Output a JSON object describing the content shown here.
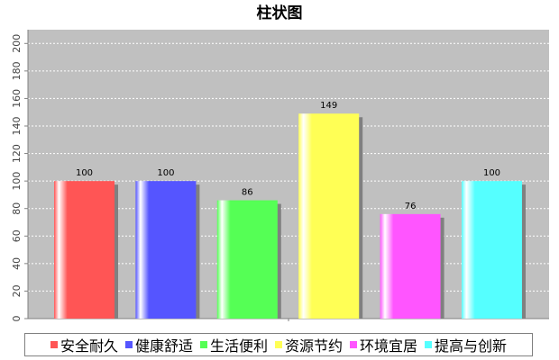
{
  "chart_data": {
    "type": "bar",
    "title": "柱状图",
    "xlabel": "",
    "ylabel": "",
    "categories": [
      "安全耐久",
      "健康舒适",
      "生活便利",
      "资源节约",
      "环境宜居",
      "提高与创新"
    ],
    "values": [
      100,
      100,
      86,
      149,
      76,
      100
    ],
    "ylim": [
      0,
      210
    ],
    "yticks": [
      0,
      20,
      40,
      60,
      80,
      100,
      120,
      140,
      160,
      180,
      200
    ],
    "colors": [
      "#ff5555",
      "#5555ff",
      "#55ff55",
      "#ffff55",
      "#ff55ff",
      "#55ffff"
    ],
    "grid": true,
    "legend_position": "bottom",
    "background": "#c0c0c0"
  }
}
